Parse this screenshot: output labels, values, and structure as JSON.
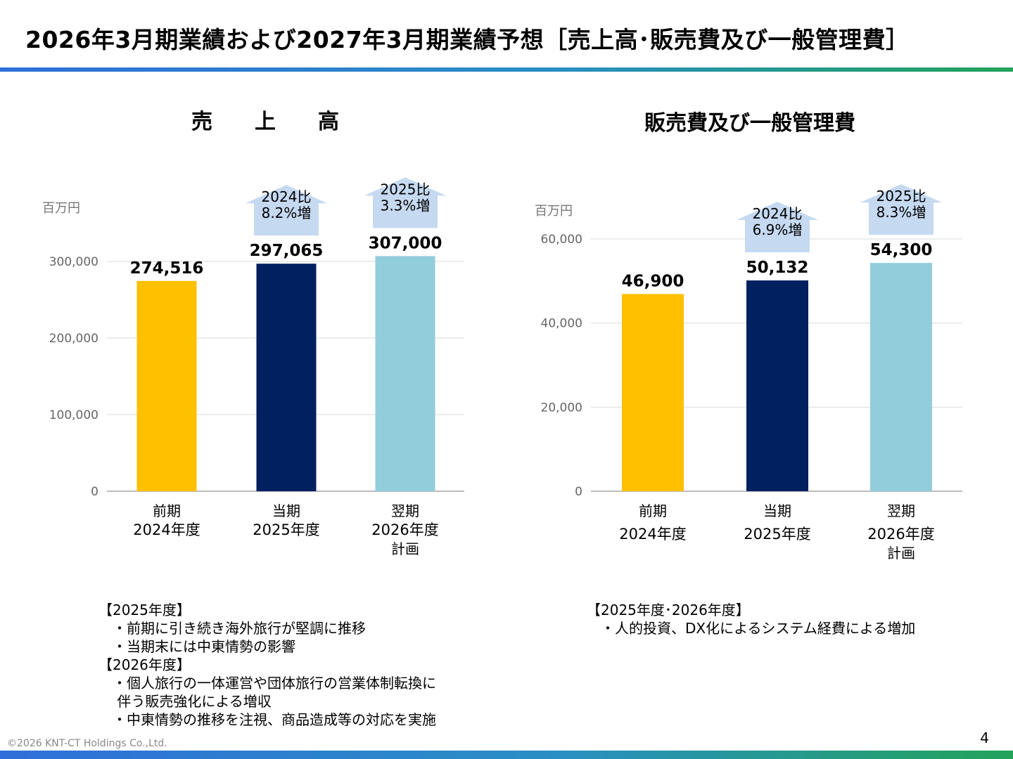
{
  "page": {
    "title": "2026年3月期業績および2027年3月期業績予想［売上高･販売費及び一般管理費］",
    "copyright": "©2026 KNT-CT Holdings Co.,Ltd.",
    "page_number": "4"
  },
  "colors": {
    "prior": "#ffc000",
    "current": "#002060",
    "plan": "#92cddc",
    "arrow": "#c5d9f1",
    "grid": "#d9d9d9"
  },
  "chart_data": [
    {
      "type": "bar",
      "title": "売　　上　　高",
      "unit": "百万円",
      "categories": [
        [
          "前期",
          "2024年度"
        ],
        [
          "当期",
          "2025年度"
        ],
        [
          "翌期",
          "2026年度",
          "計画"
        ]
      ],
      "values": [
        274516,
        297065,
        307000
      ],
      "value_labels": [
        "274,516",
        "297,065",
        "307,000"
      ],
      "ylim": [
        0,
        300000
      ],
      "yticks": [
        0,
        100000,
        200000,
        300000
      ],
      "ytick_labels": [
        "0",
        "100,000",
        "200,000",
        "300,000"
      ],
      "grid": true,
      "annotations": [
        {
          "bar": 1,
          "lines": [
            "2024比",
            "8.2%増"
          ]
        },
        {
          "bar": 2,
          "lines": [
            "2025比",
            "3.3%増"
          ]
        }
      ]
    },
    {
      "type": "bar",
      "title": "販売費及び一般管理費",
      "unit": "百万円",
      "categories": [
        [
          "前期",
          "2024年度"
        ],
        [
          "当期",
          "2025年度"
        ],
        [
          "翌期",
          "2026年度",
          "計画"
        ]
      ],
      "values": [
        46900,
        50132,
        54300
      ],
      "value_labels": [
        "46,900",
        "50,132",
        "54,300"
      ],
      "ylim": [
        0,
        60000
      ],
      "yticks": [
        0,
        20000,
        40000,
        60000
      ],
      "ytick_labels": [
        "0",
        "20,000",
        "40,000",
        "60,000"
      ],
      "grid": true,
      "annotations": [
        {
          "bar": 1,
          "lines": [
            "2024比",
            "6.9%増"
          ]
        },
        {
          "bar": 2,
          "lines": [
            "2025比",
            "8.3%増"
          ]
        }
      ]
    }
  ],
  "notes_left": [
    "【2025年度】",
    "　・前期に引き続き海外旅行が堅調に推移",
    "　・当期末には中東情勢の影響",
    "【2026年度】",
    "　・個人旅行の一体運営や団体旅行の営業体制転換に",
    "　 伴う販売強化による増収",
    "　・中東情勢の推移を注視、商品造成等の対応を実施"
  ],
  "notes_right": [
    "【2025年度･2026年度】",
    "　・人的投資、DX化によるシステム経費による増加"
  ]
}
